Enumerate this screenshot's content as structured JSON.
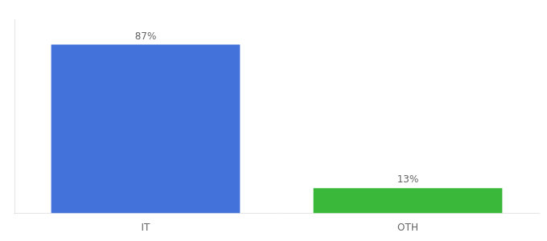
{
  "chart_data": {
    "type": "bar",
    "categories": [
      "IT",
      "OTH"
    ],
    "values": [
      87,
      13
    ],
    "value_labels": [
      "87%",
      "13%"
    ],
    "data_labels": true,
    "colors": [
      "#4472db",
      "#3ab83a"
    ],
    "ylim": [
      0,
      100
    ],
    "grid": false,
    "tick_labels": "x"
  }
}
